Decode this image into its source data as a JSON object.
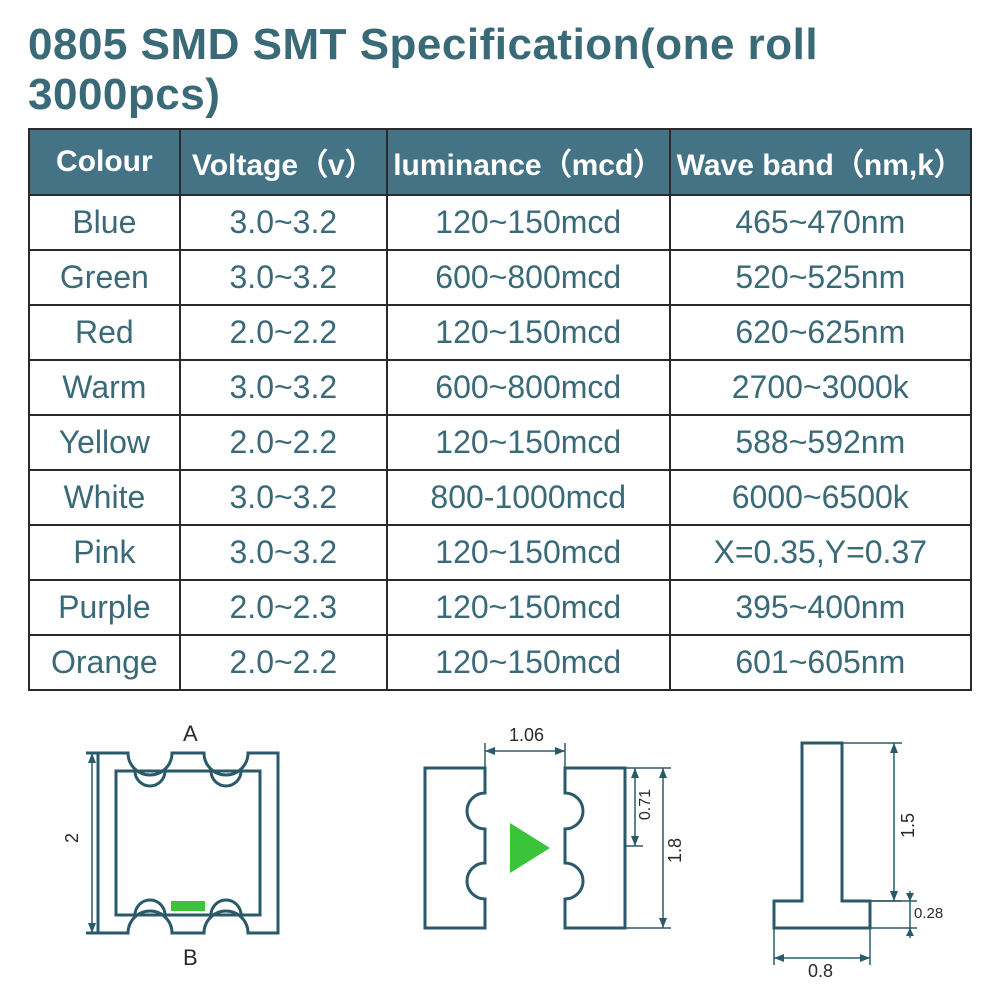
{
  "title": "0805 SMD SMT Specification(one roll 3000pcs)",
  "table": {
    "columns": [
      "Colour",
      "Voltage（v）",
      "luminance（mcd）",
      "Wave band（nm,k）"
    ],
    "column_widths_pct": [
      16,
      22,
      30,
      32
    ],
    "header_bg": "#437385",
    "header_fg": "#ffffff",
    "cell_fg": "#3a6978",
    "border_color": "#2a2a2a",
    "rows": [
      [
        "Blue",
        "3.0~3.2",
        "120~150mcd",
        "465~470nm"
      ],
      [
        "Green",
        "3.0~3.2",
        "600~800mcd",
        "520~525nm"
      ],
      [
        "Red",
        "2.0~2.2",
        "120~150mcd",
        "620~625nm"
      ],
      [
        "Warm",
        "3.0~3.2",
        "600~800mcd",
        "2700~3000k"
      ],
      [
        "Yellow",
        "2.0~2.2",
        "120~150mcd",
        "588~592nm"
      ],
      [
        "White",
        "3.0~3.2",
        "800-1000mcd",
        "6000~6500k"
      ],
      [
        "Pink",
        "3.0~3.2",
        "120~150mcd",
        "X=0.35,Y=0.37"
      ],
      [
        "Purple",
        "2.0~2.3",
        "120~150mcd",
        "395~400nm"
      ],
      [
        "Orange",
        "2.0~2.2",
        "120~150mcd",
        "601~605nm"
      ]
    ]
  },
  "diagrams": {
    "stroke": "#2a5a6a",
    "stroke_width": 3,
    "accent_green": "#3ac43a",
    "left": {
      "label_top": "A",
      "label_bottom": "B",
      "dim_height": "2"
    },
    "middle": {
      "dim_width": "1.06",
      "dim_half_height": "0.71",
      "dim_height": "1.8"
    },
    "right": {
      "dim_height": "1.5",
      "dim_base_w": "0.8",
      "dim_base_h": "0.28"
    }
  }
}
